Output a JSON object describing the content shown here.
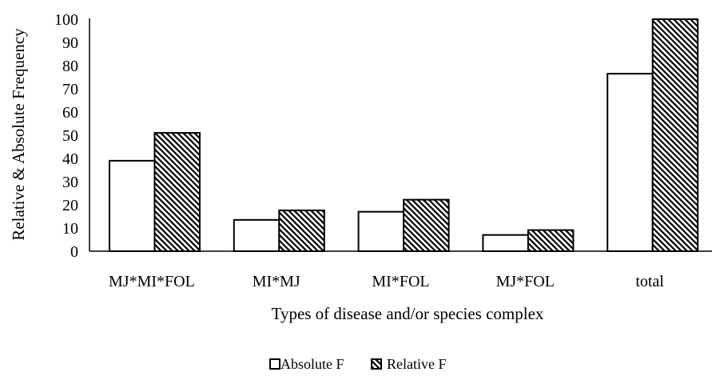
{
  "chart_data": {
    "type": "bar",
    "title": "",
    "categories": [
      "MJ*MI*FOL",
      "MI*MJ",
      "MI*FOL",
      "MJ*FOL",
      "total"
    ],
    "series": [
      {
        "name": "Absolute F",
        "values": [
          39,
          13.5,
          17,
          7,
          76.5
        ],
        "fill": "#ffffff",
        "pattern": "none"
      },
      {
        "name": "Relative F",
        "values": [
          51,
          17.6,
          22.2,
          9.1,
          100
        ],
        "fill": "#ffffff",
        "pattern": "diagonal-hatch"
      }
    ],
    "xlabel": "Types of disease and/or species complex",
    "ylabel": "Relative & Absolute Frequency",
    "ylim": [
      0,
      100
    ],
    "yticks": [
      0,
      10,
      20,
      30,
      40,
      50,
      60,
      70,
      80,
      90,
      100
    ],
    "grid": false,
    "legend_position": "bottom-center",
    "colors": {
      "stroke": "#000000",
      "background": "#ffffff"
    }
  }
}
